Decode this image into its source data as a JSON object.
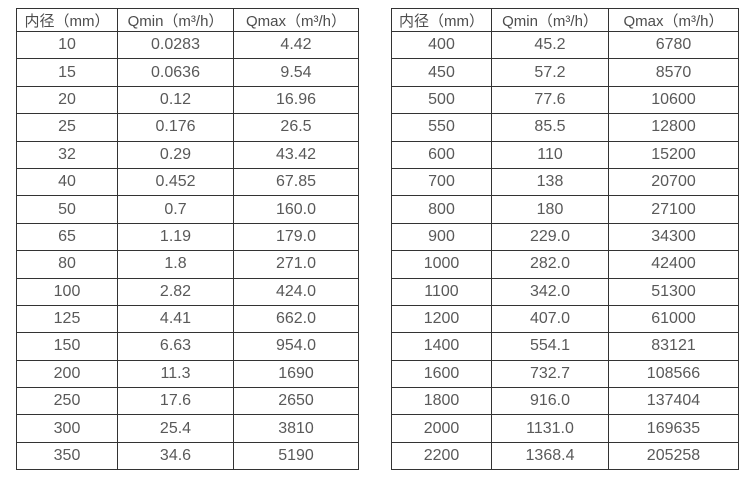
{
  "page": {
    "background": "#ffffff",
    "text_color": "#595959",
    "border_color": "#333333"
  },
  "tables": [
    {
      "name": "flow-spec-table-small-diameters",
      "headers": [
        "内径（mm）",
        "Qmin（m³/h）",
        "Qmax（m³/h）"
      ],
      "rows": [
        [
          "10",
          "0.0283",
          "4.42"
        ],
        [
          "15",
          "0.0636",
          "9.54"
        ],
        [
          "20",
          "0.12",
          "16.96"
        ],
        [
          "25",
          "0.176",
          "26.5"
        ],
        [
          "32",
          "0.29",
          "43.42"
        ],
        [
          "40",
          "0.452",
          "67.85"
        ],
        [
          "50",
          "0.7",
          "160.0"
        ],
        [
          "65",
          "1.19",
          "179.0"
        ],
        [
          "80",
          "1.8",
          "271.0"
        ],
        [
          "100",
          "2.82",
          "424.0"
        ],
        [
          "125",
          "4.41",
          "662.0"
        ],
        [
          "150",
          "6.63",
          "954.0"
        ],
        [
          "200",
          "11.3",
          "1690"
        ],
        [
          "250",
          "17.6",
          "2650"
        ],
        [
          "300",
          "25.4",
          "3810"
        ],
        [
          "350",
          "34.6",
          "5190"
        ]
      ]
    },
    {
      "name": "flow-spec-table-large-diameters",
      "headers": [
        "内径（mm）",
        "Qmin（m³/h）",
        "Qmax（m³/h）"
      ],
      "rows": [
        [
          "400",
          "45.2",
          "6780"
        ],
        [
          "450",
          "57.2",
          "8570"
        ],
        [
          "500",
          "77.6",
          "10600"
        ],
        [
          "550",
          "85.5",
          "12800"
        ],
        [
          "600",
          "110",
          "15200"
        ],
        [
          "700",
          "138",
          "20700"
        ],
        [
          "800",
          "180",
          "27100"
        ],
        [
          "900",
          "229.0",
          "34300"
        ],
        [
          "1000",
          "282.0",
          "42400"
        ],
        [
          "1100",
          "342.0",
          "51300"
        ],
        [
          "1200",
          "407.0",
          "61000"
        ],
        [
          "1400",
          "554.1",
          "83121"
        ],
        [
          "1600",
          "732.7",
          "108566"
        ],
        [
          "1800",
          "916.0",
          "137404"
        ],
        [
          "2000",
          "1131.0",
          "169635"
        ],
        [
          "2200",
          "1368.4",
          "205258"
        ]
      ]
    }
  ]
}
